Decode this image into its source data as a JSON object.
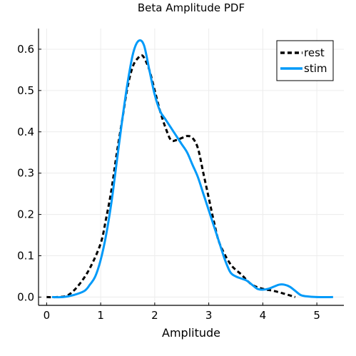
{
  "chart_data": {
    "type": "line",
    "title": "Beta Amplitude PDF",
    "xlabel": "Amplitude",
    "ylabel": "",
    "xlim": [
      -0.15,
      5.5
    ],
    "ylim": [
      -0.02,
      0.65
    ],
    "xticks": [
      0,
      1,
      2,
      3,
      4,
      5
    ],
    "yticks": [
      0.0,
      0.1,
      0.2,
      0.3,
      0.4,
      0.5,
      0.6
    ],
    "xtick_labels": [
      "0",
      "1",
      "2",
      "3",
      "4",
      "5"
    ],
    "ytick_labels": [
      "0.0",
      "0.1",
      "0.2",
      "0.3",
      "0.4",
      "0.5",
      "0.6"
    ],
    "grid": true,
    "legend_position": "top-right",
    "series": [
      {
        "name": "rest",
        "color": "#000000",
        "style": "dashed",
        "x": [
          0.0,
          0.2,
          0.4,
          0.6,
          0.8,
          1.0,
          1.1,
          1.2,
          1.3,
          1.4,
          1.5,
          1.6,
          1.7,
          1.75,
          1.8,
          1.9,
          2.0,
          2.1,
          2.2,
          2.3,
          2.4,
          2.5,
          2.6,
          2.7,
          2.8,
          2.9,
          3.0,
          3.1,
          3.2,
          3.4,
          3.6,
          3.8,
          4.0,
          4.2,
          4.4,
          4.6
        ],
        "y": [
          0.0,
          0.0,
          0.005,
          0.03,
          0.07,
          0.13,
          0.19,
          0.26,
          0.35,
          0.43,
          0.51,
          0.56,
          0.58,
          0.585,
          0.58,
          0.55,
          0.5,
          0.45,
          0.41,
          0.38,
          0.38,
          0.385,
          0.39,
          0.385,
          0.36,
          0.3,
          0.24,
          0.18,
          0.13,
          0.08,
          0.055,
          0.03,
          0.02,
          0.015,
          0.008,
          0.0
        ]
      },
      {
        "name": "stim",
        "color": "#009af9",
        "style": "solid",
        "x": [
          0.1,
          0.3,
          0.5,
          0.7,
          0.8,
          0.9,
          1.0,
          1.1,
          1.2,
          1.3,
          1.4,
          1.5,
          1.6,
          1.7,
          1.8,
          1.9,
          2.0,
          2.1,
          2.2,
          2.3,
          2.4,
          2.5,
          2.6,
          2.7,
          2.8,
          2.9,
          3.0,
          3.1,
          3.2,
          3.3,
          3.4,
          3.5,
          3.6,
          3.7,
          3.8,
          3.9,
          4.0,
          4.1,
          4.2,
          4.3,
          4.4,
          4.5,
          4.6,
          4.7,
          4.8,
          5.0,
          5.3
        ],
        "y": [
          0.0,
          0.0,
          0.005,
          0.015,
          0.03,
          0.05,
          0.09,
          0.15,
          0.23,
          0.33,
          0.43,
          0.52,
          0.59,
          0.62,
          0.61,
          0.55,
          0.49,
          0.45,
          0.43,
          0.41,
          0.39,
          0.37,
          0.35,
          0.32,
          0.29,
          0.25,
          0.21,
          0.17,
          0.13,
          0.09,
          0.06,
          0.05,
          0.045,
          0.04,
          0.03,
          0.02,
          0.018,
          0.02,
          0.025,
          0.03,
          0.03,
          0.025,
          0.015,
          0.005,
          0.002,
          0.0,
          0.0
        ]
      }
    ]
  }
}
